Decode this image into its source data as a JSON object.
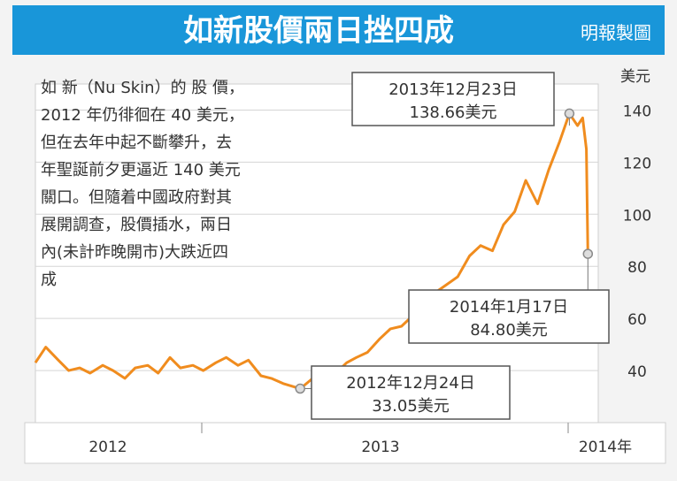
{
  "title": "如新股價兩日挫四成",
  "credit": "明報製圖",
  "description_lines": [
    "如 新（Nu Skin）的 股 價，",
    "2012 年仍徘徊在 40 美元，",
    "但在去年中起不斷攀升，去",
    "年聖誕前夕更逼近 140 美元",
    "關口。但隨着中國政府對其",
    "展開調查，股價插水，兩日",
    "內(未計昨晚開市)大跌近四",
    "成"
  ],
  "colors": {
    "title_band": "#1996d9",
    "line": "#f08c1e",
    "marker": "#8a8a8a",
    "background": "#f3f3f3",
    "plot_area": "#ffffff",
    "grid": "#d5d5d5",
    "text": "#333333"
  },
  "chart_data": {
    "type": "line",
    "title": "如新股價兩日挫四成",
    "ylabel": "美元",
    "y_ticks": [
      40,
      60,
      80,
      100,
      120,
      140
    ],
    "ylim": [
      20,
      150
    ],
    "xlim": [
      "2012-01-01",
      "2014-01-31"
    ],
    "x_tick_labels": [
      "2012",
      "2013",
      "2014年"
    ],
    "grid": true,
    "series": [
      {
        "x": [
          "2012-01-01",
          "2012-01-15",
          "2012-02-01",
          "2012-02-15",
          "2012-03-01",
          "2012-03-15",
          "2012-04-01",
          "2012-04-15",
          "2012-05-01",
          "2012-05-15",
          "2012-06-01",
          "2012-06-15",
          "2012-07-01",
          "2012-07-15",
          "2012-08-01",
          "2012-08-15",
          "2012-09-01",
          "2012-09-15",
          "2012-10-01",
          "2012-10-15",
          "2012-11-01",
          "2012-11-15",
          "2012-12-01",
          "2012-12-24",
          "2013-01-10",
          "2013-01-25",
          "2013-02-10",
          "2013-02-25",
          "2013-03-10",
          "2013-03-25",
          "2013-04-10",
          "2013-04-25",
          "2013-05-10",
          "2013-05-25",
          "2013-06-10",
          "2013-06-25",
          "2013-07-10",
          "2013-07-25",
          "2013-08-10",
          "2013-08-25",
          "2013-09-10",
          "2013-09-25",
          "2013-10-10",
          "2013-10-25",
          "2013-11-10",
          "2013-11-25",
          "2013-12-10",
          "2013-12-23",
          "2014-01-03",
          "2014-01-10",
          "2014-01-15",
          "2014-01-17"
        ],
        "values": [
          43,
          49,
          44,
          40,
          41,
          39,
          42,
          40,
          37,
          41,
          42,
          39,
          45,
          41,
          42,
          40,
          43,
          45,
          42,
          44,
          38,
          37,
          35,
          33.05,
          37,
          41,
          39,
          43,
          45,
          47,
          52,
          56,
          57,
          61,
          60,
          70,
          73,
          76,
          84,
          88,
          86,
          96,
          101,
          113,
          104,
          117,
          128,
          138.66,
          134,
          137,
          125,
          84.8
        ]
      }
    ],
    "annotations": [
      {
        "date_label": "2012年12月24日",
        "price_label": "33.05美元",
        "x": "2012-12-24",
        "y": 33.05
      },
      {
        "date_label": "2013年12月23日",
        "price_label": "138.66美元",
        "x": "2013-12-23",
        "y": 138.66
      },
      {
        "date_label": "2014年1月17日",
        "price_label": "84.80美元",
        "x": "2014-01-17",
        "y": 84.8
      }
    ]
  }
}
